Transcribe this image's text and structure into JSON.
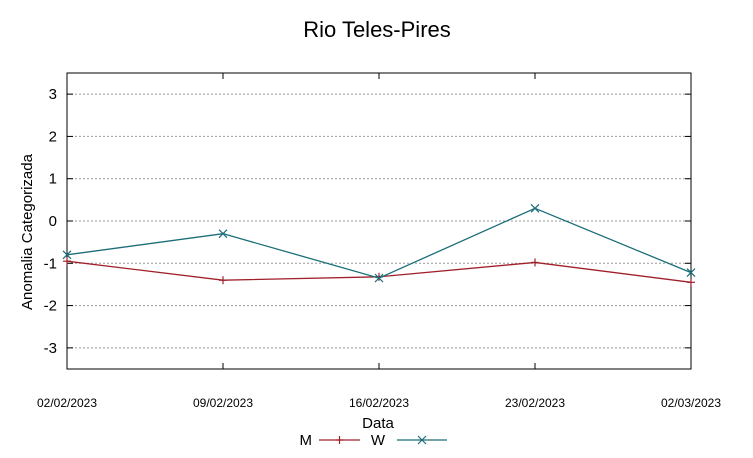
{
  "chart_data": {
    "type": "line",
    "title": "Rio Teles-Pires",
    "xlabel": "Data",
    "ylabel": "Anomalia Categorizada",
    "categories": [
      "02/02/2023",
      "09/02/2023",
      "16/02/2023",
      "23/02/2023",
      "02/03/2023"
    ],
    "yticks": [
      -3,
      -2,
      -1,
      0,
      1,
      2,
      3
    ],
    "ylim": [
      -3.5,
      3.5
    ],
    "grid": "horizontal dotted",
    "legend_position": "bottom",
    "series": [
      {
        "name": "M",
        "color": "#a0202a",
        "marker": "plus",
        "values": [
          -0.95,
          -1.4,
          -1.32,
          -0.98,
          -1.45
        ]
      },
      {
        "name": "W",
        "color": "#1a6e78",
        "marker": "cross",
        "values": [
          -0.8,
          -0.3,
          -1.35,
          0.3,
          -1.22
        ]
      }
    ]
  }
}
